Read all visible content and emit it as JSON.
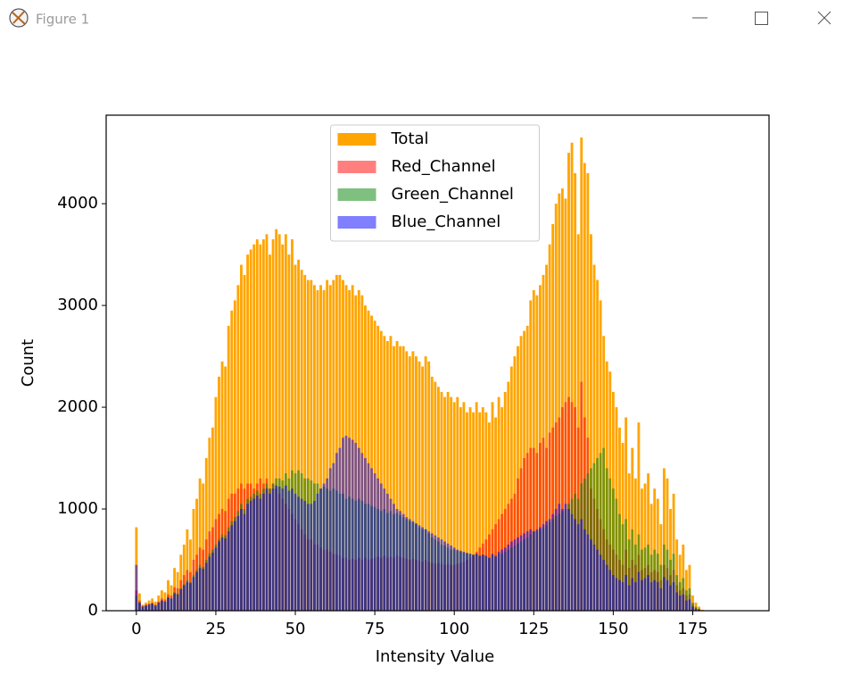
{
  "window": {
    "title": "Figure 1"
  },
  "chart_data": {
    "type": "bar",
    "x": [
      0,
      1,
      2,
      3,
      4,
      5,
      6,
      7,
      8,
      9,
      10,
      11,
      12,
      13,
      14,
      15,
      16,
      17,
      18,
      19,
      20,
      21,
      22,
      23,
      24,
      25,
      26,
      27,
      28,
      29,
      30,
      31,
      32,
      33,
      34,
      35,
      36,
      37,
      38,
      39,
      40,
      41,
      42,
      43,
      44,
      45,
      46,
      47,
      48,
      49,
      50,
      51,
      52,
      53,
      54,
      55,
      56,
      57,
      58,
      59,
      60,
      61,
      62,
      63,
      64,
      65,
      66,
      67,
      68,
      69,
      70,
      71,
      72,
      73,
      74,
      75,
      76,
      77,
      78,
      79,
      80,
      81,
      82,
      83,
      84,
      85,
      86,
      87,
      88,
      89,
      90,
      91,
      92,
      93,
      94,
      95,
      96,
      97,
      98,
      99,
      100,
      101,
      102,
      103,
      104,
      105,
      106,
      107,
      108,
      109,
      110,
      111,
      112,
      113,
      114,
      115,
      116,
      117,
      118,
      119,
      120,
      121,
      122,
      123,
      124,
      125,
      126,
      127,
      128,
      129,
      130,
      131,
      132,
      133,
      134,
      135,
      136,
      137,
      138,
      139,
      140,
      141,
      142,
      143,
      144,
      145,
      146,
      147,
      148,
      149,
      150,
      151,
      152,
      153,
      154,
      155,
      156,
      157,
      158,
      159,
      160,
      161,
      162,
      163,
      164,
      165,
      166,
      167,
      168,
      169,
      170,
      171,
      172,
      173,
      174,
      175,
      176,
      177,
      178,
      179
    ],
    "bar_width": 0.8,
    "series": [
      {
        "name": "Total",
        "color": "#ffa500",
        "alpha": 1,
        "values": [
          820,
          170,
          60,
          80,
          100,
          120,
          90,
          150,
          200,
          180,
          300,
          250,
          420,
          380,
          550,
          650,
          800,
          700,
          1000,
          1100,
          1300,
          1250,
          1500,
          1700,
          1800,
          2100,
          2300,
          2450,
          2400,
          2800,
          2950,
          3050,
          3200,
          3400,
          3300,
          3500,
          3550,
          3600,
          3650,
          3600,
          3650,
          3700,
          3500,
          3650,
          3750,
          3700,
          3600,
          3700,
          3500,
          3650,
          3400,
          3450,
          3350,
          3300,
          3250,
          3250,
          3200,
          3150,
          3200,
          3150,
          3250,
          3200,
          3250,
          3300,
          3300,
          3250,
          3200,
          3150,
          3200,
          3100,
          3150,
          3100,
          3000,
          2950,
          2900,
          2850,
          2800,
          2750,
          2700,
          2650,
          2700,
          2600,
          2650,
          2600,
          2600,
          2550,
          2500,
          2550,
          2500,
          2450,
          2400,
          2500,
          2450,
          2300,
          2250,
          2200,
          2150,
          2100,
          2150,
          2100,
          2050,
          2100,
          2000,
          2050,
          1950,
          2000,
          1950,
          2050,
          1950,
          2000,
          1950,
          1850,
          2050,
          1900,
          2100,
          2000,
          2150,
          2250,
          2400,
          2500,
          2600,
          2700,
          2750,
          2800,
          3050,
          3150,
          3100,
          3200,
          3300,
          3400,
          3600,
          3800,
          4000,
          4100,
          4150,
          4050,
          4500,
          4600,
          4300,
          3700,
          4650,
          4400,
          4300,
          3700,
          3400,
          3250,
          3050,
          2700,
          2450,
          2350,
          2150,
          2000,
          1800,
          1650,
          1900,
          1350,
          1600,
          1300,
          1850,
          1200,
          1250,
          1350,
          1050,
          1200,
          1100,
          850,
          1400,
          1300,
          1000,
          1150,
          700,
          550,
          650,
          400,
          450,
          150,
          80,
          40,
          10,
          0
        ]
      },
      {
        "name": "Red_Channel",
        "color": "#ff0000",
        "alpha": 0.5,
        "values": [
          200,
          100,
          50,
          60,
          70,
          80,
          60,
          90,
          120,
          110,
          160,
          150,
          230,
          220,
          300,
          350,
          400,
          380,
          500,
          550,
          620,
          600,
          700,
          780,
          820,
          900,
          950,
          1000,
          980,
          1100,
          1150,
          1150,
          1200,
          1250,
          1200,
          1250,
          1250,
          1200,
          1250,
          1300,
          1250,
          1300,
          1200,
          1250,
          1200,
          1150,
          1100,
          1050,
          1000,
          950,
          900,
          850,
          800,
          750,
          700,
          700,
          650,
          650,
          620,
          600,
          600,
          580,
          560,
          550,
          540,
          520,
          520,
          500,
          510,
          500,
          520,
          500,
          520,
          500,
          510,
          520,
          530,
          520,
          540,
          520,
          530,
          520,
          540,
          530,
          520,
          510,
          500,
          510,
          500,
          490,
          480,
          500,
          480,
          470,
          460,
          470,
          460,
          450,
          460,
          450,
          450,
          460,
          470,
          480,
          500,
          520,
          550,
          580,
          620,
          660,
          700,
          750,
          800,
          850,
          900,
          950,
          1000,
          1050,
          1100,
          1150,
          1300,
          1400,
          1500,
          1550,
          1600,
          1600,
          1550,
          1650,
          1700,
          1600,
          1750,
          1800,
          1850,
          1900,
          2000,
          2050,
          2100,
          2050,
          2000,
          1800,
          2250,
          1900,
          1700,
          1200,
          1100,
          1000,
          900,
          800,
          700,
          650,
          600,
          550,
          500,
          450,
          600,
          420,
          500,
          450,
          550,
          400,
          420,
          450,
          380,
          400,
          380,
          300,
          450,
          420,
          350,
          400,
          250,
          200,
          220,
          150,
          160,
          60,
          30,
          15,
          5,
          0
        ]
      },
      {
        "name": "Green_Channel",
        "color": "#008000",
        "alpha": 0.5,
        "values": [
          150,
          80,
          40,
          50,
          60,
          70,
          50,
          80,
          100,
          90,
          130,
          120,
          180,
          170,
          220,
          260,
          300,
          280,
          350,
          400,
          450,
          430,
          500,
          560,
          600,
          650,
          700,
          750,
          740,
          820,
          880,
          920,
          980,
          1050,
          1000,
          1100,
          1120,
          1150,
          1180,
          1150,
          1200,
          1250,
          1200,
          1250,
          1300,
          1300,
          1280,
          1350,
          1300,
          1380,
          1350,
          1380,
          1350,
          1300,
          1300,
          1280,
          1250,
          1250,
          1200,
          1220,
          1200,
          1180,
          1200,
          1180,
          1150,
          1150,
          1100,
          1120,
          1100,
          1080,
          1100,
          1080,
          1050,
          1050,
          1030,
          1020,
          1000,
          980,
          1000,
          960,
          980,
          950,
          960,
          940,
          920,
          900,
          880,
          870,
          850,
          820,
          800,
          800,
          760,
          720,
          700,
          680,
          650,
          640,
          620,
          600,
          600,
          590,
          580,
          570,
          560,
          560,
          550,
          560,
          540,
          550,
          540,
          520,
          550,
          530,
          560,
          560,
          580,
          600,
          620,
          640,
          660,
          680,
          700,
          720,
          750,
          780,
          780,
          800,
          820,
          840,
          870,
          900,
          930,
          950,
          980,
          1000,
          1050,
          1100,
          1150,
          1100,
          1250,
          1300,
          1350,
          1400,
          1450,
          1500,
          1550,
          1600,
          1400,
          1300,
          1200,
          1100,
          950,
          850,
          900,
          700,
          800,
          650,
          750,
          600,
          620,
          650,
          550,
          600,
          560,
          450,
          650,
          600,
          500,
          560,
          350,
          280,
          320,
          200,
          220,
          80,
          40,
          20,
          5,
          0
        ]
      },
      {
        "name": "Blue_Channel",
        "color": "#0000ff",
        "alpha": 0.5,
        "values": [
          450,
          80,
          40,
          50,
          60,
          70,
          50,
          80,
          100,
          90,
          130,
          120,
          170,
          160,
          210,
          250,
          280,
          270,
          330,
          380,
          420,
          410,
          470,
          530,
          570,
          620,
          680,
          720,
          710,
          780,
          840,
          880,
          930,
          1000,
          950,
          1050,
          1080,
          1100,
          1130,
          1100,
          1150,
          1200,
          1150,
          1200,
          1230,
          1220,
          1200,
          1230,
          1180,
          1200,
          1150,
          1120,
          1100,
          1080,
          1050,
          1050,
          1080,
          1150,
          1200,
          1250,
          1300,
          1400,
          1450,
          1550,
          1600,
          1700,
          1720,
          1700,
          1680,
          1650,
          1600,
          1550,
          1500,
          1450,
          1400,
          1350,
          1300,
          1250,
          1200,
          1150,
          1100,
          1050,
          1000,
          980,
          950,
          920,
          900,
          880,
          860,
          840,
          820,
          800,
          780,
          760,
          740,
          720,
          700,
          680,
          660,
          640,
          620,
          600,
          590,
          580,
          570,
          560,
          550,
          560,
          540,
          550,
          540,
          520,
          560,
          540,
          580,
          600,
          620,
          650,
          680,
          700,
          720,
          740,
          760,
          780,
          800,
          780,
          800,
          820,
          850,
          880,
          900,
          950,
          1000,
          1050,
          1000,
          1050,
          1000,
          950,
          900,
          850,
          900,
          800,
          750,
          700,
          650,
          600,
          550,
          500,
          450,
          400,
          350,
          320,
          300,
          280,
          350,
          250,
          320,
          280,
          380,
          300,
          320,
          350,
          280,
          300,
          280,
          220,
          330,
          300,
          250,
          280,
          180,
          150,
          160,
          100,
          110,
          40,
          20,
          10,
          3,
          0
        ]
      }
    ],
    "xlabel": "Intensity Value",
    "ylabel": "Count",
    "xlim": [
      -9.5,
      199
    ],
    "ylim": [
      0,
      4870
    ],
    "xticks": [
      0,
      25,
      50,
      75,
      100,
      125,
      150,
      175
    ],
    "yticks": [
      0,
      1000,
      2000,
      3000,
      4000
    ],
    "legend": "upper center"
  }
}
